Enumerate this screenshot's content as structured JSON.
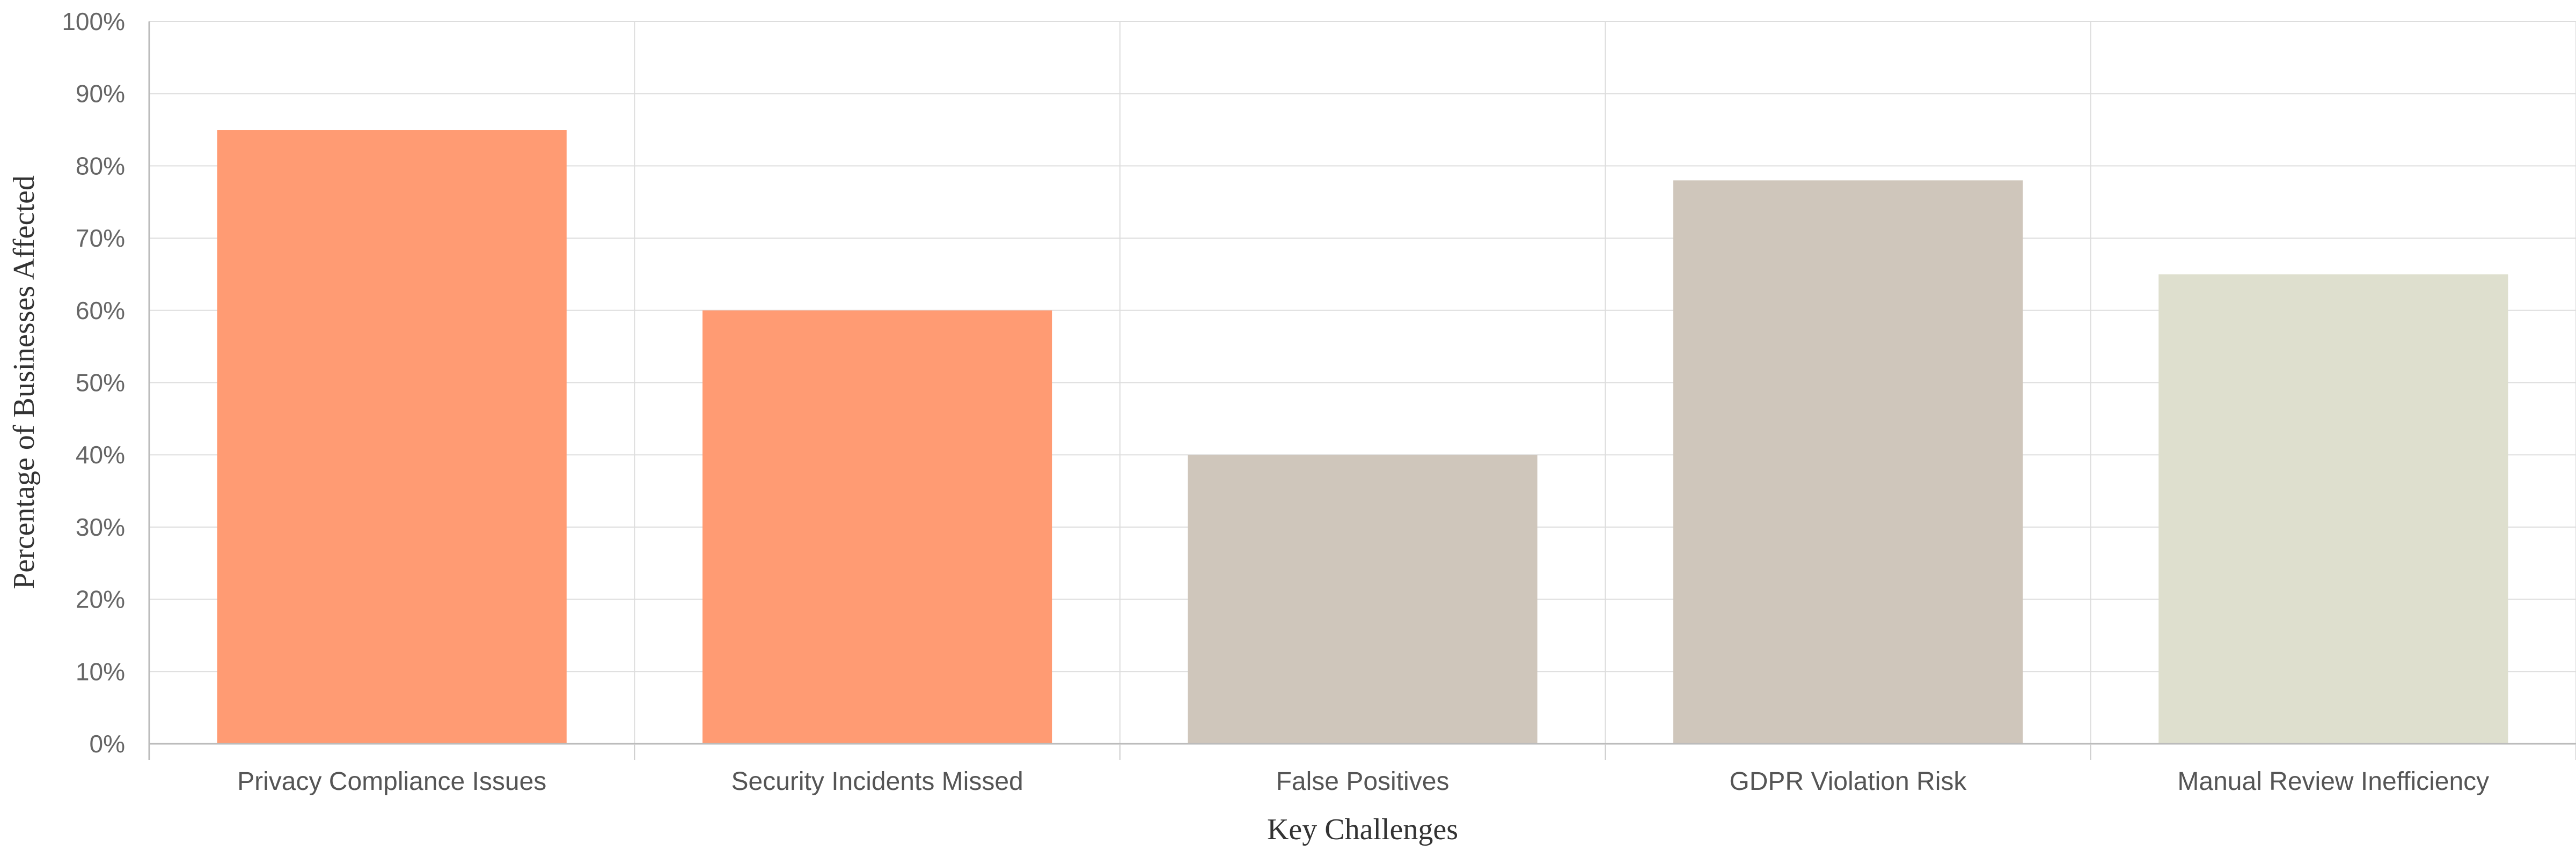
{
  "chart_data": {
    "type": "bar",
    "title": "",
    "xlabel": "Key Challenges",
    "ylabel": "Percentage of Businesses Affected",
    "categories": [
      "Privacy Compliance Issues",
      "Security Incidents Missed",
      "False Positives",
      "GDPR Violation Risk",
      "Manual Review Inefficiency"
    ],
    "values": [
      85,
      60,
      40,
      78,
      65
    ],
    "bar_colors": [
      "#ff9b73",
      "#ff9b73",
      "#cfc6bb",
      "#cfc6bb",
      "#dedfce"
    ],
    "ylim": [
      0,
      100
    ],
    "ytick_values": [
      0,
      10,
      20,
      30,
      40,
      50,
      60,
      70,
      80,
      90,
      100
    ],
    "ytick_labels": [
      "0%",
      "10%",
      "20%",
      "30%",
      "40%",
      "50%",
      "60%",
      "70%",
      "80%",
      "90%",
      "100%"
    ],
    "grid": true,
    "legend": "none"
  }
}
